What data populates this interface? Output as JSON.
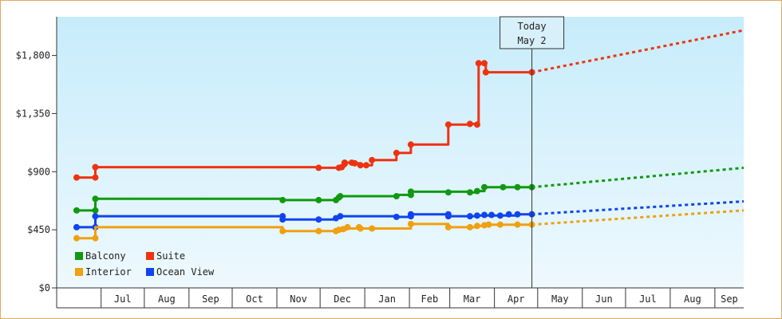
{
  "chart_data": {
    "type": "line",
    "title": "",
    "xlabel": "",
    "ylabel": "",
    "ylim": [
      0,
      2100
    ],
    "y_ticks": [
      0,
      450,
      900,
      1350,
      1800
    ],
    "y_tick_labels": [
      "$0",
      "$450",
      "$900",
      "$1,350",
      "$1,800"
    ],
    "x_range_days": [
      0,
      463
    ],
    "months": [
      {
        "label": "Jul",
        "start": 17,
        "end": 47
      },
      {
        "label": "Aug",
        "start": 47,
        "end": 78
      },
      {
        "label": "Sep",
        "start": 78,
        "end": 108
      },
      {
        "label": "Oct",
        "start": 108,
        "end": 139
      },
      {
        "label": "Nov",
        "start": 139,
        "end": 169
      },
      {
        "label": "Dec",
        "start": 169,
        "end": 200
      },
      {
        "label": "Jan",
        "start": 200,
        "end": 231
      },
      {
        "label": "Feb",
        "start": 231,
        "end": 259
      },
      {
        "label": "Mar",
        "start": 259,
        "end": 290
      },
      {
        "label": "Apr",
        "start": 290,
        "end": 320
      },
      {
        "label": "May",
        "start": 320,
        "end": 351
      },
      {
        "label": "Jun",
        "start": 351,
        "end": 381
      },
      {
        "label": "Jul",
        "start": 381,
        "end": 412
      },
      {
        "label": "Aug",
        "start": 412,
        "end": 443
      },
      {
        "label": "Sep",
        "start": 443,
        "end": 463
      }
    ],
    "today": {
      "day": 316,
      "label_line1": "Today",
      "label_line2": "May 2"
    },
    "legend": {
      "placement": "bottom-left",
      "entries": [
        {
          "label": "Balcony",
          "color": "#119911"
        },
        {
          "label": "Suite",
          "color": "#ee3311"
        },
        {
          "label": "Interior",
          "color": "#f0a010"
        },
        {
          "label": "Ocean View",
          "color": "#1144ee"
        }
      ]
    },
    "series": [
      {
        "name": "Suite",
        "color": "#ee3311",
        "points": [
          [
            0,
            855
          ],
          [
            13,
            855
          ],
          [
            13,
            935
          ],
          [
            168,
            935
          ],
          [
            168,
            930
          ],
          [
            182,
            930
          ],
          [
            182,
            940
          ],
          [
            186,
            940
          ],
          [
            186,
            970
          ],
          [
            191,
            970
          ],
          [
            191,
            960
          ],
          [
            193,
            960
          ],
          [
            193,
            965
          ],
          [
            197,
            965
          ],
          [
            197,
            950
          ],
          [
            205,
            950
          ],
          [
            205,
            990
          ],
          [
            222,
            990
          ],
          [
            222,
            1045
          ],
          [
            232,
            1045
          ],
          [
            232,
            1110
          ],
          [
            258,
            1110
          ],
          [
            258,
            1265
          ],
          [
            273,
            1265
          ],
          [
            273,
            1270
          ],
          [
            278,
            1270
          ],
          [
            278,
            1265
          ],
          [
            279,
            1265
          ],
          [
            279,
            1740
          ],
          [
            284,
            1740
          ],
          [
            284,
            1670
          ],
          [
            316,
            1670
          ]
        ],
        "markers": [
          [
            0,
            855
          ],
          [
            13,
            855
          ],
          [
            13,
            935
          ],
          [
            168,
            930
          ],
          [
            182,
            930
          ],
          [
            184,
            935
          ],
          [
            186,
            960
          ],
          [
            186,
            970
          ],
          [
            191,
            970
          ],
          [
            193,
            965
          ],
          [
            197,
            950
          ],
          [
            201,
            950
          ],
          [
            205,
            990
          ],
          [
            222,
            1045
          ],
          [
            232,
            1110
          ],
          [
            258,
            1265
          ],
          [
            273,
            1270
          ],
          [
            278,
            1265
          ],
          [
            279,
            1740
          ],
          [
            283,
            1740
          ],
          [
            284,
            1670
          ],
          [
            316,
            1670
          ]
        ],
        "forecast": [
          [
            316,
            1670
          ],
          [
            463,
            1995
          ]
        ]
      },
      {
        "name": "Balcony",
        "color": "#119911",
        "points": [
          [
            0,
            600
          ],
          [
            13,
            600
          ],
          [
            13,
            690
          ],
          [
            143,
            690
          ],
          [
            143,
            680
          ],
          [
            181,
            680
          ],
          [
            181,
            705
          ],
          [
            183,
            705
          ],
          [
            183,
            710
          ],
          [
            222,
            710
          ],
          [
            222,
            720
          ],
          [
            232,
            720
          ],
          [
            232,
            745
          ],
          [
            273,
            745
          ],
          [
            273,
            740
          ],
          [
            278,
            740
          ],
          [
            278,
            750
          ],
          [
            283,
            750
          ],
          [
            283,
            780
          ],
          [
            316,
            780
          ]
        ],
        "markers": [
          [
            0,
            600
          ],
          [
            13,
            600
          ],
          [
            13,
            690
          ],
          [
            143,
            680
          ],
          [
            168,
            680
          ],
          [
            180,
            680
          ],
          [
            182,
            700
          ],
          [
            183,
            710
          ],
          [
            222,
            710
          ],
          [
            232,
            720
          ],
          [
            232,
            745
          ],
          [
            258,
            740
          ],
          [
            273,
            740
          ],
          [
            278,
            750
          ],
          [
            283,
            780
          ],
          [
            296,
            780
          ],
          [
            306,
            780
          ],
          [
            316,
            780
          ]
        ],
        "forecast": [
          [
            316,
            780
          ],
          [
            463,
            930
          ]
        ]
      },
      {
        "name": "Ocean View",
        "color": "#1144ee",
        "points": [
          [
            0,
            470
          ],
          [
            13,
            470
          ],
          [
            13,
            555
          ],
          [
            143,
            555
          ],
          [
            143,
            530
          ],
          [
            181,
            530
          ],
          [
            181,
            545
          ],
          [
            183,
            545
          ],
          [
            183,
            555
          ],
          [
            222,
            555
          ],
          [
            222,
            550
          ],
          [
            232,
            550
          ],
          [
            232,
            570
          ],
          [
            258,
            570
          ],
          [
            258,
            555
          ],
          [
            278,
            555
          ],
          [
            278,
            560
          ],
          [
            306,
            560
          ],
          [
            306,
            570
          ],
          [
            316,
            570
          ]
        ],
        "markers": [
          [
            0,
            470
          ],
          [
            13,
            470
          ],
          [
            13,
            555
          ],
          [
            143,
            555
          ],
          [
            143,
            530
          ],
          [
            168,
            530
          ],
          [
            180,
            540
          ],
          [
            183,
            555
          ],
          [
            222,
            550
          ],
          [
            232,
            555
          ],
          [
            232,
            570
          ],
          [
            258,
            570
          ],
          [
            258,
            555
          ],
          [
            273,
            555
          ],
          [
            278,
            560
          ],
          [
            283,
            565
          ],
          [
            288,
            565
          ],
          [
            294,
            560
          ],
          [
            300,
            570
          ],
          [
            306,
            570
          ],
          [
            316,
            570
          ]
        ],
        "forecast": [
          [
            316,
            570
          ],
          [
            463,
            670
          ]
        ]
      },
      {
        "name": "Interior",
        "color": "#f0a010",
        "points": [
          [
            0,
            385
          ],
          [
            13,
            385
          ],
          [
            13,
            470
          ],
          [
            143,
            470
          ],
          [
            143,
            440
          ],
          [
            181,
            440
          ],
          [
            181,
            450
          ],
          [
            187,
            450
          ],
          [
            187,
            460
          ],
          [
            232,
            460
          ],
          [
            232,
            495
          ],
          [
            258,
            495
          ],
          [
            258,
            470
          ],
          [
            278,
            470
          ],
          [
            278,
            480
          ],
          [
            286,
            480
          ],
          [
            286,
            490
          ],
          [
            316,
            490
          ]
        ],
        "markers": [
          [
            0,
            385
          ],
          [
            13,
            385
          ],
          [
            143,
            440
          ],
          [
            168,
            440
          ],
          [
            180,
            440
          ],
          [
            182,
            450
          ],
          [
            185,
            455
          ],
          [
            188,
            470
          ],
          [
            196,
            470
          ],
          [
            197,
            460
          ],
          [
            205,
            460
          ],
          [
            232,
            495
          ],
          [
            258,
            470
          ],
          [
            273,
            470
          ],
          [
            278,
            480
          ],
          [
            283,
            485
          ],
          [
            286,
            490
          ],
          [
            294,
            490
          ],
          [
            306,
            490
          ],
          [
            316,
            490
          ]
        ],
        "forecast": [
          [
            316,
            490
          ],
          [
            463,
            600
          ]
        ]
      }
    ]
  }
}
